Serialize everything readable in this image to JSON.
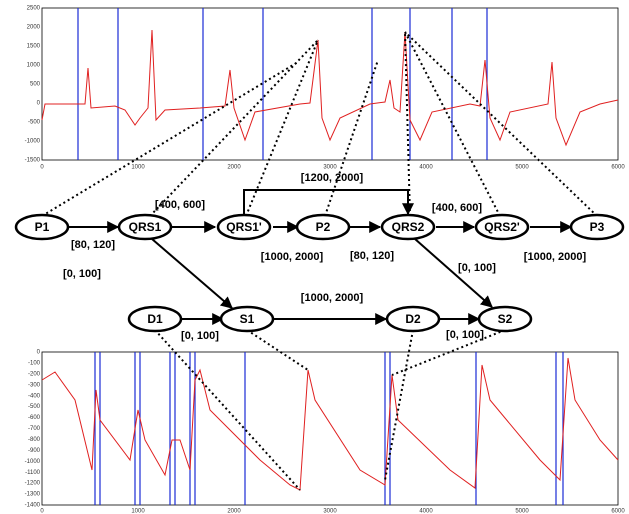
{
  "top_plot": {
    "yticks": [
      2500,
      2000,
      1500,
      1000,
      500,
      0,
      -500,
      -1000,
      -1500
    ],
    "xticks": [
      0,
      1000,
      2000,
      3000,
      4000,
      5000,
      6000
    ]
  },
  "bottom_plot": {
    "yticks": [
      0,
      -100,
      -200,
      -300,
      -400,
      -500,
      -600,
      -700,
      -800,
      -900,
      -1000,
      -1100,
      -1200,
      -1300,
      -1400
    ],
    "xticks": [
      0,
      1000,
      2000,
      3000,
      4000,
      5000,
      6000
    ]
  },
  "nodes": [
    "P1",
    "QRS1",
    "QRS1'",
    "P2",
    "QRS2",
    "QRS2'",
    "P3",
    "D1",
    "S1",
    "D2",
    "S2"
  ],
  "edge_labels": [
    "[80, 120]",
    "[400, 600]",
    "[1000, 2000]",
    "[80, 120]",
    "[1200, 2000]",
    "[400, 600]",
    "[1000, 2000]",
    "[0, 100]",
    "[0, 100]",
    "[1000, 2000]",
    "[0, 100]",
    "[0, 100]"
  ]
}
